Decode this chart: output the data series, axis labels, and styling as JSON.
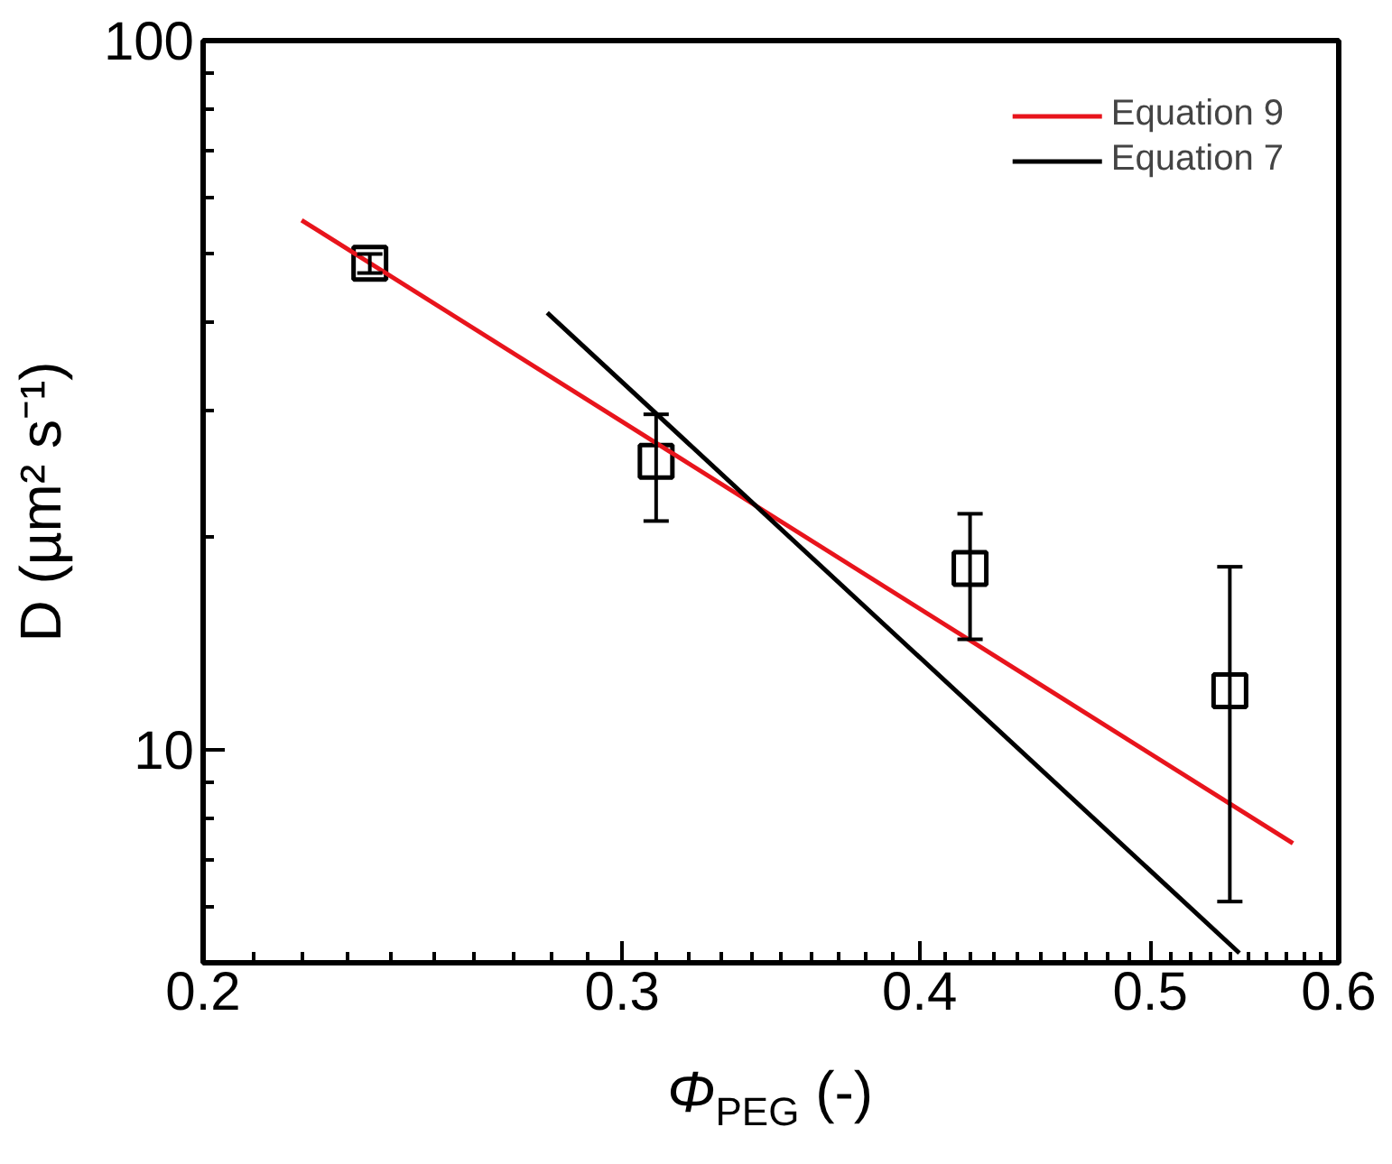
{
  "chart_data": {
    "type": "line",
    "xlabel": "Φ$_{PEG}$ (-)",
    "ylabel": "D (µm² s⁻¹)",
    "log": "xy",
    "xlim": [
      0.2,
      0.6
    ],
    "ylim": [
      5,
      100
    ],
    "xticks": [
      0.2,
      0.3,
      0.4,
      0.5,
      0.6
    ],
    "yticks": [
      10,
      100
    ],
    "grid": false,
    "legend": "top right",
    "series": [
      {
        "type": "scatter",
        "marker": "square",
        "color": "#000000",
        "x": [
          0.235,
          0.31,
          0.42,
          0.54
        ],
        "values": [
          48.5,
          25.5,
          18.0,
          12.1
        ],
        "errors": [
          [
            47,
            50
          ],
          [
            21,
            29.7
          ],
          [
            14.3,
            21.5
          ],
          [
            6.1,
            18.1
          ]
        ]
      },
      {
        "name": "Equation 9",
        "color": "#e8141c",
        "x": [
          0.22,
          0.574
        ],
        "values": [
          55.8,
          7.37
        ]
      },
      {
        "name": "Equation 7",
        "color": "#000000",
        "x": [
          0.279,
          0.545
        ],
        "values": [
          41.3,
          5.16
        ]
      }
    ]
  }
}
